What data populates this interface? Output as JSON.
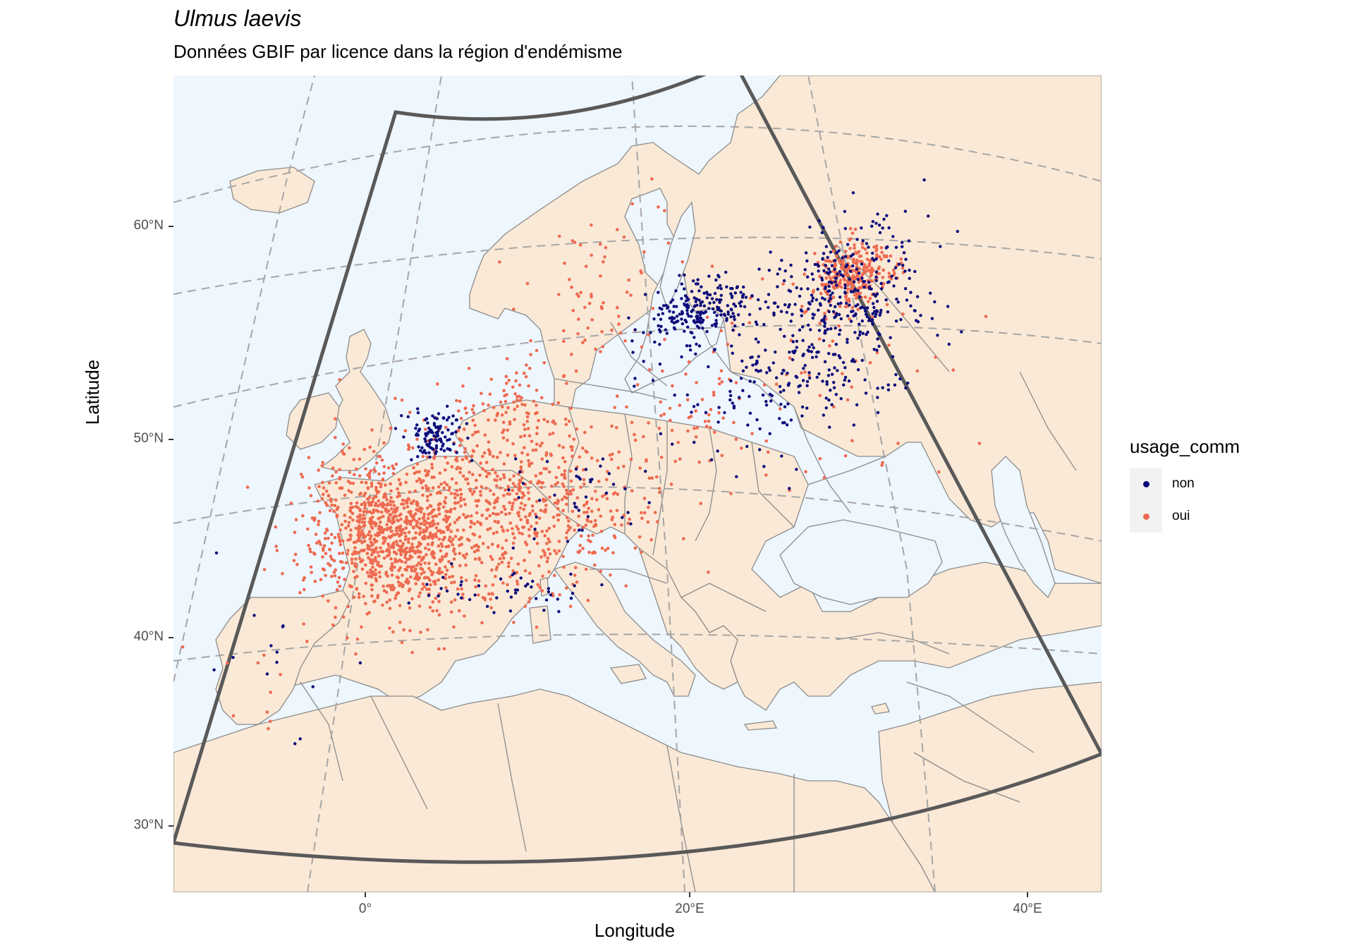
{
  "title": "Ulmus laevis",
  "subtitle": "Données GBIF par licence dans la région d'endémisme",
  "xlabel": "Longitude",
  "ylabel": "Latitude",
  "yticks": [
    "60°N",
    "50°N",
    "40°N",
    "30°N"
  ],
  "xticks": [
    "0°",
    "20°E",
    "40°E"
  ],
  "colors": {
    "sea": "#eef6fe",
    "land": "#fae9d6",
    "border": "#8c8c8c",
    "graticule": "#a6a6a6",
    "extent": "#595959",
    "non": "#0a0a7a",
    "oui": "#ee6a50"
  },
  "legend": {
    "title": "usage_comm",
    "items": [
      {
        "label": "non",
        "color": "#0a0a7a"
      },
      {
        "label": "oui",
        "color": "#ee6a50"
      }
    ]
  },
  "chart_data": {
    "type": "scatter",
    "title": "Ulmus laevis",
    "subtitle": "Données GBIF par licence dans la région d'endémisme",
    "xlabel": "Longitude",
    "ylabel": "Latitude",
    "legend_position": "right",
    "series": [
      {
        "name": "non",
        "clusters": [
          {
            "lon": 24.5,
            "lat": 56.8,
            "spread": [
              2.0,
              0.8
            ],
            "n": 220
          },
          {
            "lon": 33.5,
            "lat": 56.0,
            "spread": [
              2.5,
              1.5
            ],
            "n": 260
          },
          {
            "lon": 31.5,
            "lat": 52.5,
            "spread": [
              3.5,
              1.2
            ],
            "n": 130
          },
          {
            "lon": 6.5,
            "lat": 51.8,
            "spread": [
              0.9,
              0.6
            ],
            "n": 110
          },
          {
            "lon": 15.5,
            "lat": 48.8,
            "spread": [
              2.0,
              1.0
            ],
            "n": 40
          },
          {
            "lon": 10.0,
            "lat": 44.3,
            "spread": [
              2.5,
              0.5
            ],
            "n": 45
          },
          {
            "lon": 26.0,
            "lat": 52.0,
            "spread": [
              4.0,
              2.0
            ],
            "n": 60
          },
          {
            "lon": -3.0,
            "lat": 40.0,
            "spread": [
              1.8,
              1.8
            ],
            "n": 14
          },
          {
            "lon": 37.0,
            "lat": 55.5,
            "spread": [
              1.5,
              1.5
            ],
            "n": 40
          }
        ]
      },
      {
        "name": "oui",
        "clusters": [
          {
            "lon": 3.5,
            "lat": 47.0,
            "spread": [
              2.5,
              1.7
            ],
            "n": 800
          },
          {
            "lon": 10.0,
            "lat": 49.0,
            "spread": [
              3.5,
              2.2
            ],
            "n": 500
          },
          {
            "lon": 15.5,
            "lat": 47.5,
            "spread": [
              3.0,
              1.5
            ],
            "n": 150
          },
          {
            "lon": 34.5,
            "lat": 56.5,
            "spread": [
              1.2,
              0.7
            ],
            "n": 280
          },
          {
            "lon": 18.0,
            "lat": 58.5,
            "spread": [
              3.0,
              1.5
            ],
            "n": 70
          },
          {
            "lon": 22.0,
            "lat": 51.5,
            "spread": [
              4.5,
              2.0
            ],
            "n": 110
          },
          {
            "lon": 12.0,
            "lat": 53.5,
            "spread": [
              2.0,
              1.0
            ],
            "n": 70
          },
          {
            "lon": 5.0,
            "lat": 45.0,
            "spread": [
              3.0,
              1.5
            ],
            "n": 150
          },
          {
            "lon": 35.0,
            "lat": 52.0,
            "spread": [
              4.0,
              3.0
            ],
            "n": 40
          },
          {
            "lon": -3.5,
            "lat": 40.0,
            "spread": [
              2.0,
              1.5
            ],
            "n": 10
          }
        ]
      }
    ]
  }
}
